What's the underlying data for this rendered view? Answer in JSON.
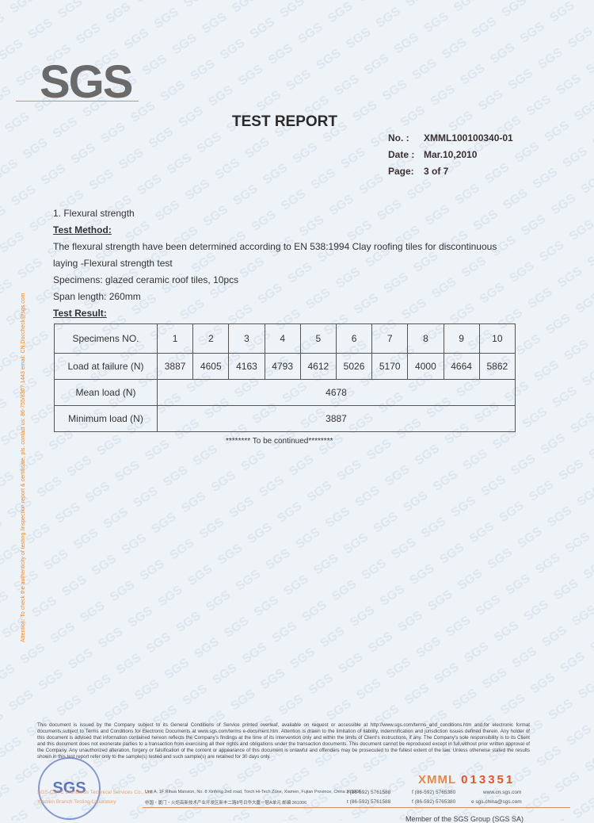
{
  "logo": "SGS",
  "header": {
    "title": "TEST REPORT",
    "no_label": "No.  :",
    "no_value": "XMML100100340-01",
    "date_label": "Date :",
    "date_value": "Mar.10,2010",
    "page_label": "Page:",
    "page_value": "3 of 7"
  },
  "section": {
    "heading": "1. Flexural strength",
    "method_label": "Test Method:",
    "method_line1": "The flexural strength have been determined according to EN 538:1994 Clay roofing tiles for discontinuous",
    "method_line2": "laying -Flexural strength test",
    "specimens": "Specimens: glazed ceramic roof tiles, 10pcs",
    "span": "Span length: 260mm",
    "result_label": "Test Result:"
  },
  "table": {
    "header_label": "Specimens NO.",
    "specimens": [
      "1",
      "2",
      "3",
      "4",
      "5",
      "6",
      "7",
      "8",
      "9",
      "10"
    ],
    "load_label": "Load at failure (N)",
    "loads": [
      "3887",
      "4605",
      "4163",
      "4793",
      "4612",
      "5026",
      "5170",
      "4000",
      "4664",
      "5862"
    ],
    "mean_label": "Mean load (N)",
    "mean_value": "4678",
    "min_label": "Minimum load (N)",
    "min_value": "3887"
  },
  "continued": "******** To be continued********",
  "side_notice": "Attention: To check the authenticity of testing /inspection report & certificate, pls. contact us: 86-755/8307 1443 email: CN.Doccheck@sgs.com",
  "footer": {
    "disclaimer": "This document is issued by the Company subject to its General Conditions of Service printed overleaf, available on request or accessible at http://www.sgs.com/terms_and_conditions.htm and,for electronic format documents,subject to Terms and Conditions for Electronic Documents at www.sgs.com/terms e-document.htm. Attention is drawn to the limitation of liability, indemnification and jurisdiction issues defined therein. Any holder of this document is advised that information contained hereon reflects the Company's findings at the time of its intervention only and within the limits of Client's instructions, if any. The Company's sole responsibility is to its Client and this document does not exonerate parties to a transaction from exercising all their rights and obligations under the transaction documents. This document cannot be reproduced except in full,without prior written approval of the Company. Any unauthorized alteration, forgery or falsification of the content or appearance of this document is unlawful and offenders may be prosecuted to the fullest extent of the law. Unless otherwise stated the results shown in this test report refer only to the sample(s) tested and such sample(s) are retained for 30 days only.",
    "stamp": "SGS",
    "serial_prefix": "XMML",
    "serial_number": "013351",
    "company_en": "SGS-CSTC Standards Technical Services Co., Ltd.",
    "company_cn": "Xiamen Branch Testing Laboratory",
    "address_en": "Unit A, 1F Rihua Mansion, No. 8 Xinfeng 2nd road, Torch Hi-Tech Zone, Xiamen, Fujian Province, China 361006",
    "address_cn": "中国・厦门・火炬高新技术产业开发区新丰二路8号日华大厦一层A单元  邮编:361006",
    "tel1": "t (86-592) 5761588",
    "tel2": "t (86-592) 5761588",
    "fax1": "f (86-592) 5765380",
    "fax2": "f (86-592) 5765380",
    "web": "www.cn.sgs.com",
    "email": "e sgs.china@sgs.com",
    "member": "Member of the SGS Group (SGS SA)"
  },
  "colors": {
    "accent": "#e08a5a",
    "background": "#eef3f8",
    "stamp": "#3b55b0"
  }
}
